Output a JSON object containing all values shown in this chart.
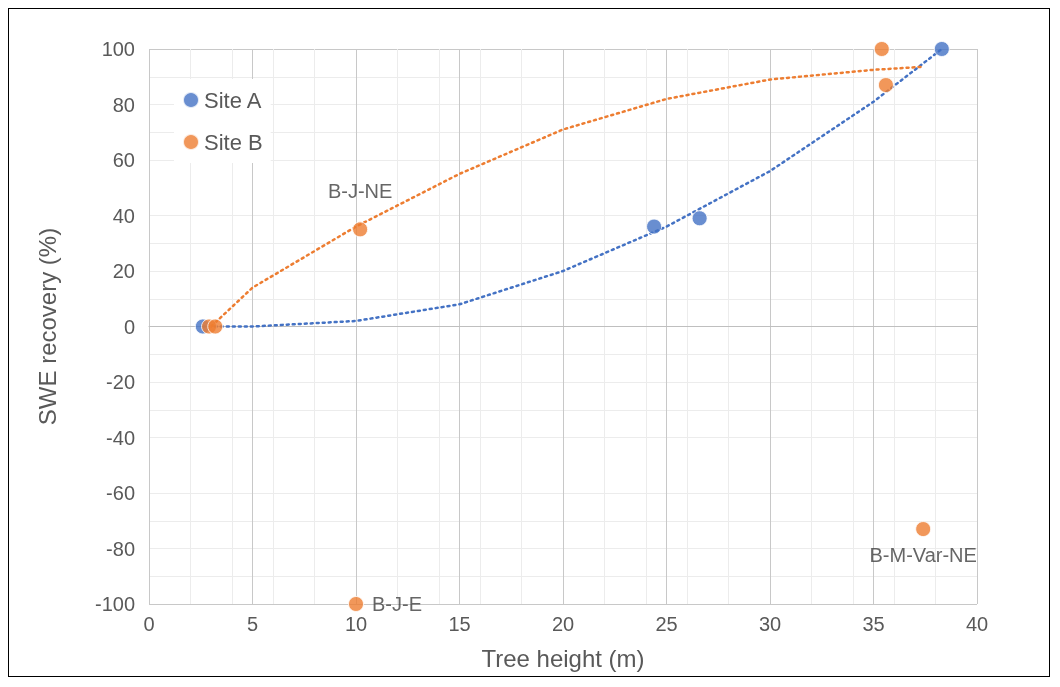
{
  "chart_data": {
    "type": "scatter",
    "xlabel": "Tree height (m)",
    "ylabel": "SWE recovery (%)",
    "xlim": [
      0,
      40
    ],
    "xticks": [
      0,
      5,
      10,
      15,
      20,
      25,
      30,
      35,
      40
    ],
    "ylim": [
      -100,
      100
    ],
    "yticks": [
      -100,
      -80,
      -60,
      -40,
      -20,
      0,
      20,
      40,
      60,
      80,
      100
    ],
    "grid": true,
    "legend": "top left",
    "marker": "circle",
    "series": [
      {
        "name": "Site A",
        "color": "#4472c4",
        "x": [
          2.6,
          24.4,
          26.6,
          38.3
        ],
        "values": [
          0,
          36,
          39,
          100
        ]
      },
      {
        "name": "Site B",
        "color": "#ed7d31",
        "x": [
          2.9,
          3.2,
          10.2,
          35.4,
          35.6,
          37.4,
          10.0
        ],
        "values": [
          0,
          0,
          35,
          100,
          87,
          -73,
          -100
        ]
      },
      {
        "type": "line",
        "color": "#4472c4",
        "line_style": "dotted",
        "marker": "none",
        "x": [
          2.6,
          5,
          10,
          15,
          20,
          25,
          30,
          35,
          38.3
        ],
        "values": [
          0,
          0,
          2,
          8,
          20,
          36,
          56,
          81,
          100
        ]
      },
      {
        "type": "line",
        "color": "#ed7d31",
        "line_style": "dotted",
        "marker": "none",
        "x": [
          3,
          5,
          10,
          15,
          20,
          25,
          30,
          35,
          37.4
        ],
        "values": [
          0,
          14,
          36,
          55,
          71,
          82,
          89,
          92.5,
          93.6
        ]
      }
    ],
    "annotations": [
      {
        "text": "B-J-NE",
        "x": 10.2,
        "y": 35
      },
      {
        "text": "B-J-E",
        "x": 10.0,
        "y": -100
      },
      {
        "text": "B-M-Var-NE",
        "x": 37.4,
        "y": -73
      }
    ]
  }
}
